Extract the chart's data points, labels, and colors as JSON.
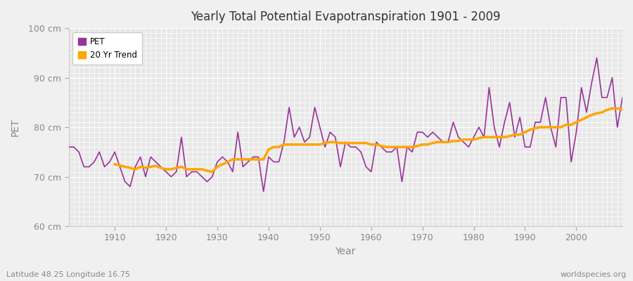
{
  "title": "Yearly Total Potential Evapotranspiration 1901 - 2009",
  "xlabel": "Year",
  "ylabel": "PET",
  "subtitle_left": "Latitude 48.25 Longitude 16.75",
  "subtitle_right": "worldspecies.org",
  "pet_color": "#993399",
  "trend_color": "#FFA500",
  "bg_color": "#f0f0f0",
  "plot_bg_color": "#e8e8e8",
  "ylim": [
    60,
    100
  ],
  "xlim": [
    1901,
    2009
  ],
  "yticks": [
    60,
    70,
    80,
    90,
    100
  ],
  "ytick_labels": [
    "60 cm",
    "70 cm",
    "80 cm",
    "90 cm",
    "100 cm"
  ],
  "xticks": [
    1910,
    1920,
    1930,
    1940,
    1950,
    1960,
    1970,
    1980,
    1990,
    2000
  ],
  "pet_years": [
    1901,
    1902,
    1903,
    1904,
    1905,
    1906,
    1907,
    1908,
    1909,
    1910,
    1911,
    1912,
    1913,
    1914,
    1915,
    1916,
    1917,
    1918,
    1919,
    1920,
    1921,
    1922,
    1923,
    1924,
    1925,
    1926,
    1927,
    1928,
    1929,
    1930,
    1931,
    1932,
    1933,
    1934,
    1935,
    1936,
    1937,
    1938,
    1939,
    1940,
    1941,
    1942,
    1943,
    1944,
    1945,
    1946,
    1947,
    1948,
    1949,
    1950,
    1951,
    1952,
    1953,
    1954,
    1955,
    1956,
    1957,
    1958,
    1959,
    1960,
    1961,
    1962,
    1963,
    1964,
    1965,
    1966,
    1967,
    1968,
    1969,
    1970,
    1971,
    1972,
    1973,
    1974,
    1975,
    1976,
    1977,
    1978,
    1979,
    1980,
    1981,
    1982,
    1983,
    1984,
    1985,
    1986,
    1987,
    1988,
    1989,
    1990,
    1991,
    1992,
    1993,
    1994,
    1995,
    1996,
    1997,
    1998,
    1999,
    2000,
    2001,
    2002,
    2003,
    2004,
    2005,
    2006,
    2007,
    2008,
    2009
  ],
  "pet_values": [
    76,
    76,
    75,
    72,
    72,
    73,
    75,
    72,
    73,
    75,
    72,
    69,
    68,
    72,
    74,
    70,
    74,
    73,
    72,
    71,
    70,
    71,
    78,
    70,
    71,
    71,
    70,
    69,
    70,
    73,
    74,
    73,
    71,
    79,
    72,
    73,
    74,
    74,
    67,
    74,
    73,
    73,
    77,
    84,
    78,
    80,
    77,
    78,
    84,
    80,
    76,
    79,
    78,
    72,
    77,
    76,
    76,
    75,
    72,
    71,
    77,
    76,
    75,
    75,
    76,
    69,
    76,
    75,
    79,
    79,
    78,
    79,
    78,
    77,
    77,
    81,
    78,
    77,
    76,
    78,
    80,
    78,
    88,
    80,
    76,
    81,
    85,
    78,
    82,
    76,
    76,
    81,
    81,
    86,
    80,
    76,
    86,
    86,
    73,
    79,
    88,
    83,
    89,
    94,
    86,
    86,
    90,
    80,
    86
  ],
  "trend_years": [
    1910,
    1911,
    1912,
    1913,
    1914,
    1915,
    1916,
    1917,
    1918,
    1919,
    1920,
    1921,
    1922,
    1923,
    1924,
    1925,
    1926,
    1927,
    1928,
    1929,
    1930,
    1931,
    1932,
    1933,
    1934,
    1935,
    1936,
    1937,
    1938,
    1939,
    1940,
    1941,
    1942,
    1943,
    1944,
    1945,
    1946,
    1947,
    1948,
    1949,
    1950,
    1951,
    1952,
    1953,
    1954,
    1955,
    1956,
    1957,
    1958,
    1959,
    1960,
    1961,
    1962,
    1963,
    1964,
    1965,
    1966,
    1967,
    1968,
    1969,
    1970,
    1971,
    1972,
    1973,
    1974,
    1975,
    1976,
    1977,
    1978,
    1979,
    1980,
    1981,
    1982,
    1983,
    1984,
    1985,
    1986,
    1987,
    1988,
    1989,
    1990,
    1991,
    1992,
    1993,
    1994,
    1995,
    1996,
    1997,
    1998,
    1999,
    2000,
    2001,
    2002,
    2003,
    2004,
    2005,
    2006,
    2007,
    2008,
    2009
  ],
  "trend_values": [
    72.5,
    72.3,
    72.0,
    71.8,
    71.5,
    72.0,
    71.8,
    72.0,
    72.2,
    71.8,
    71.5,
    71.5,
    71.8,
    72.0,
    71.5,
    71.5,
    71.5,
    71.5,
    71.2,
    71.0,
    72.0,
    72.5,
    73.0,
    73.5,
    73.5,
    73.5,
    73.5,
    73.5,
    73.5,
    73.5,
    75.5,
    76.0,
    76.0,
    76.5,
    76.5,
    76.5,
    76.5,
    76.5,
    76.5,
    76.5,
    76.5,
    76.8,
    77.0,
    77.0,
    76.8,
    76.8,
    76.8,
    76.8,
    76.8,
    76.8,
    76.5,
    76.5,
    76.2,
    76.0,
    76.0,
    76.0,
    76.0,
    76.0,
    76.0,
    76.2,
    76.5,
    76.5,
    76.8,
    77.0,
    77.0,
    77.0,
    77.2,
    77.2,
    77.5,
    77.5,
    77.5,
    77.8,
    78.0,
    78.0,
    78.0,
    78.0,
    78.0,
    78.2,
    78.5,
    78.5,
    79.0,
    79.5,
    79.8,
    80.0,
    80.0,
    80.0,
    80.0,
    80.0,
    80.5,
    80.5,
    81.0,
    81.5,
    82.0,
    82.5,
    82.8,
    83.0,
    83.5,
    83.8,
    83.8,
    83.5
  ],
  "legend_pet_label": "PET",
  "legend_trend_label": "20 Yr Trend"
}
